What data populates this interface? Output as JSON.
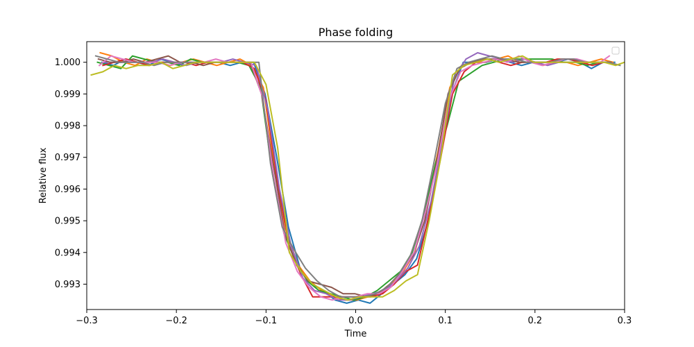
{
  "chart_data": {
    "type": "line",
    "title": "Phase folding",
    "xlabel": "Time",
    "ylabel": "Relative flux",
    "xlim": [
      -0.3,
      0.3
    ],
    "ylim": [
      0.9922,
      1.00065
    ],
    "xticks": [
      -0.3,
      -0.2,
      -0.1,
      0.0,
      0.1,
      0.2,
      0.3
    ],
    "xtick_labels": [
      "−0.3",
      "−0.2",
      "−0.1",
      "0.0",
      "0.1",
      "0.2",
      "0.3"
    ],
    "yticks": [
      0.993,
      0.994,
      0.995,
      0.996,
      0.997,
      0.998,
      0.999,
      1.0
    ],
    "ytick_labels": [
      "0.993",
      "0.994",
      "0.995",
      "0.996",
      "0.997",
      "0.998",
      "0.999",
      "1.000"
    ],
    "grid": false,
    "legend": {
      "placement": "upper right",
      "entries": []
    },
    "series": [
      {
        "color": "#1f77b4",
        "x": [
          -0.283,
          -0.27,
          -0.257,
          -0.244,
          -0.231,
          -0.218,
          -0.205,
          -0.192,
          -0.179,
          -0.166,
          -0.153,
          -0.14,
          -0.127,
          -0.114,
          -0.101,
          -0.088,
          -0.075,
          -0.062,
          -0.049,
          -0.036,
          -0.023,
          -0.01,
          0.003,
          0.016,
          0.029,
          0.042,
          0.055,
          0.068,
          0.081,
          0.094,
          0.107,
          0.12,
          0.133,
          0.146,
          0.159,
          0.172,
          0.185,
          0.198,
          0.211,
          0.224,
          0.237,
          0.25,
          0.263,
          0.276,
          0.289
        ],
        "values": [
          1.0,
          0.9999,
          1.0001,
          1.0,
          0.9999,
          1.0001,
          1.0,
          0.9999,
          1.0,
          1.0,
          1.0,
          0.9999,
          1.0,
          1.0,
          0.999,
          0.997,
          0.9948,
          0.9935,
          0.993,
          0.9928,
          0.9925,
          0.9924,
          0.9925,
          0.9924,
          0.9927,
          0.993,
          0.9933,
          0.9938,
          0.995,
          0.997,
          0.999,
          1.0,
          1.0,
          1.0,
          1.0001,
          1.0,
          0.9999,
          1.0,
          1.0,
          1.0,
          1.0001,
          1.0,
          0.9998,
          1.0,
          1.0
        ]
      },
      {
        "color": "#ff7f0e",
        "x": [
          -0.285,
          -0.272,
          -0.259,
          -0.246,
          -0.233,
          -0.22,
          -0.207,
          -0.194,
          -0.181,
          -0.168,
          -0.155,
          -0.142,
          -0.129,
          -0.116,
          -0.103,
          -0.09,
          -0.077,
          -0.064,
          -0.051,
          -0.038,
          -0.025,
          -0.012,
          0.001,
          0.014,
          0.027,
          0.04,
          0.053,
          0.066,
          0.079,
          0.092,
          0.105,
          0.118,
          0.131,
          0.144,
          0.157,
          0.17,
          0.183,
          0.196,
          0.209,
          0.222,
          0.235,
          0.248,
          0.261,
          0.274,
          0.287
        ],
        "values": [
          1.0003,
          1.0002,
          1.0,
          0.9999,
          1.0001,
          1.0,
          0.9999,
          1.0,
          1.0001,
          1.0,
          0.9999,
          1.0,
          1.0001,
          0.9999,
          0.9992,
          0.9966,
          0.9946,
          0.9936,
          0.9931,
          0.9928,
          0.9926,
          0.9925,
          0.9925,
          0.9926,
          0.9927,
          0.993,
          0.9934,
          0.994,
          0.9955,
          0.9972,
          0.9992,
          0.9999,
          1.0,
          1.0,
          1.0001,
          1.0002,
          1.0,
          1.0,
          0.9999,
          1.0,
          1.0,
          0.9999,
          1.0,
          1.0001,
          1.0
        ]
      },
      {
        "color": "#2ca02c",
        "x": [
          -0.288,
          -0.275,
          -0.262,
          -0.249,
          -0.236,
          -0.223,
          -0.21,
          -0.197,
          -0.184,
          -0.171,
          -0.158,
          -0.145,
          -0.132,
          -0.119,
          -0.106,
          -0.093,
          -0.08,
          -0.067,
          -0.054,
          -0.041,
          -0.028,
          -0.015,
          -0.002,
          0.011,
          0.024,
          0.037,
          0.05,
          0.063,
          0.076,
          0.089,
          0.102,
          0.115,
          0.141,
          0.154,
          0.167,
          0.18,
          0.193,
          0.206,
          0.219,
          0.232,
          0.245,
          0.258,
          0.271,
          0.284
        ],
        "values": [
          1.0,
          0.9999,
          0.9998,
          1.0002,
          1.0001,
          1.0,
          1.0,
          0.9999,
          1.0001,
          1.0,
          1.0,
          1.0,
          1.0,
          0.9999,
          0.9992,
          0.9965,
          0.9946,
          0.9937,
          0.9931,
          0.9928,
          0.9927,
          0.9926,
          0.9925,
          0.9926,
          0.9928,
          0.9931,
          0.9934,
          0.994,
          0.9952,
          0.9968,
          0.998,
          0.9994,
          0.9999,
          1.0,
          1.0001,
          1.0001,
          1.0001,
          1.0001,
          1.0001,
          1.0,
          1.0,
          0.9999,
          1.0,
          1.0
        ]
      },
      {
        "color": "#d62728",
        "x": [
          -0.282,
          -0.269,
          -0.256,
          -0.243,
          -0.23,
          -0.217,
          -0.204,
          -0.191,
          -0.178,
          -0.165,
          -0.152,
          -0.139,
          -0.126,
          -0.113,
          -0.1,
          -0.087,
          -0.074,
          -0.061,
          -0.048,
          -0.035,
          -0.022,
          -0.009,
          0.004,
          0.017,
          0.03,
          0.043,
          0.056,
          0.069,
          0.082,
          0.095,
          0.108,
          0.121,
          0.134,
          0.147,
          0.16,
          0.173,
          0.186,
          0.199,
          0.212,
          0.225,
          0.238,
          0.251,
          0.264,
          0.277
        ],
        "values": [
          0.9999,
          1.0,
          1.0001,
          1.0,
          0.9999,
          1.0,
          1.0,
          1.0,
          0.9999,
          1.0,
          1.0,
          1.0,
          1.0,
          0.9998,
          0.9988,
          0.9962,
          0.9942,
          0.9933,
          0.9926,
          0.9926,
          0.9926,
          0.9926,
          0.9926,
          0.9926,
          0.9927,
          0.993,
          0.9934,
          0.9936,
          0.9952,
          0.997,
          0.999,
          0.9997,
          1.0,
          1.0001,
          1.0,
          0.9999,
          1.0,
          1.0,
          1.0,
          1.0001,
          1.0001,
          1.0,
          0.9999,
          1.0
        ]
      },
      {
        "color": "#9467bd",
        "x": [
          -0.28,
          -0.267,
          -0.254,
          -0.241,
          -0.228,
          -0.215,
          -0.202,
          -0.189,
          -0.176,
          -0.163,
          -0.15,
          -0.137,
          -0.124,
          -0.111,
          -0.098,
          -0.085,
          -0.072,
          -0.059,
          -0.046,
          -0.033,
          -0.02,
          -0.007,
          0.006,
          0.019,
          0.032,
          0.045,
          0.058,
          0.071,
          0.084,
          0.097,
          0.11,
          0.123,
          0.136,
          0.149,
          0.162,
          0.175,
          0.188,
          0.201,
          0.214,
          0.227,
          0.24,
          0.253,
          0.266,
          0.279
        ],
        "values": [
          1.0,
          1.0,
          1.0,
          1.0,
          1.0,
          1.0001,
          1.0,
          0.9999,
          1.0,
          1.0,
          1.0,
          1.0001,
          1.0,
          0.9999,
          0.9985,
          0.996,
          0.9942,
          0.9932,
          0.9928,
          0.9927,
          0.9925,
          0.9925,
          0.9926,
          0.9927,
          0.9928,
          0.9931,
          0.9935,
          0.9942,
          0.9956,
          0.9975,
          0.9995,
          1.0001,
          1.0003,
          1.0002,
          1.0001,
          1.0,
          1.0001,
          1.0,
          0.9999,
          1.0,
          1.0,
          1.0,
          1.0,
          1.0
        ]
      },
      {
        "color": "#8c564b",
        "x": [
          -0.287,
          -0.274,
          -0.261,
          -0.248,
          -0.235,
          -0.222,
          -0.209,
          -0.196,
          -0.183,
          -0.17,
          -0.157,
          -0.144,
          -0.131,
          -0.118,
          -0.105,
          -0.092,
          -0.079,
          -0.066,
          -0.053,
          -0.04,
          -0.027,
          -0.014,
          -0.001,
          0.012,
          0.025,
          0.038,
          0.051,
          0.064,
          0.077,
          0.09,
          0.103,
          0.116,
          0.129,
          0.142,
          0.155,
          0.168,
          0.181,
          0.194,
          0.207,
          0.22,
          0.233,
          0.246,
          0.259,
          0.272,
          0.285
        ],
        "values": [
          1.0001,
          1.0,
          1.0,
          1.0001,
          1.0,
          1.0001,
          1.0002,
          1.0,
          1.0,
          0.9999,
          1.0,
          1.0,
          1.0,
          1.0,
          0.999,
          0.9968,
          0.9946,
          0.9936,
          0.9931,
          0.993,
          0.9929,
          0.9927,
          0.9927,
          0.9926,
          0.9927,
          0.993,
          0.9934,
          0.9939,
          0.995,
          0.9968,
          0.999,
          0.9998,
          1.0,
          1.0001,
          1.0001,
          1.0001,
          1.0,
          1.0,
          1.0,
          1.0,
          1.0001,
          1.0001,
          1.0,
          1.0,
          1.0
        ]
      },
      {
        "color": "#e377c2",
        "x": [
          -0.286,
          -0.273,
          -0.26,
          -0.247,
          -0.234,
          -0.221,
          -0.208,
          -0.195,
          -0.182,
          -0.169,
          -0.156,
          -0.143,
          -0.13,
          -0.117,
          -0.104,
          -0.091,
          -0.078,
          -0.065,
          -0.052,
          -0.039,
          -0.026,
          -0.013,
          0.0,
          0.013,
          0.026,
          0.039,
          0.052,
          0.065,
          0.078,
          0.091,
          0.104,
          0.117,
          0.13,
          0.143,
          0.156,
          0.169,
          0.182,
          0.195,
          0.208,
          0.221,
          0.234,
          0.247,
          0.26,
          0.273,
          0.283
        ],
        "values": [
          0.9999,
          1.0002,
          1.0001,
          1.0,
          1.0,
          1.0,
          0.9999,
          1.0,
          1.0,
          1.0,
          1.0001,
          1.0,
          1.0,
          1.0,
          0.9989,
          0.9963,
          0.9943,
          0.9934,
          0.9929,
          0.9926,
          0.9925,
          0.9926,
          0.9926,
          0.9927,
          0.9927,
          0.9929,
          0.9934,
          0.994,
          0.9953,
          0.9968,
          0.9988,
          0.9997,
          0.9999,
          1.0,
          1.0001,
          1.0,
          1.0002,
          1.0,
          0.9999,
          1.0,
          1.0001,
          1.0001,
          1.0,
          1.0,
          1.0002
        ]
      },
      {
        "color": "#7f7f7f",
        "x": [
          -0.29,
          -0.277,
          -0.264,
          -0.251,
          -0.238,
          -0.225,
          -0.212,
          -0.199,
          -0.186,
          -0.173,
          -0.16,
          -0.147,
          -0.134,
          -0.121,
          -0.108,
          -0.095,
          -0.082,
          -0.069,
          -0.056,
          -0.043,
          -0.03,
          -0.017,
          -0.004,
          0.009,
          0.022,
          0.035,
          0.048,
          0.061,
          0.074,
          0.087,
          0.1,
          0.113,
          0.126,
          0.139,
          0.152,
          0.165,
          0.178,
          0.191,
          0.204,
          0.217,
          0.23,
          0.243,
          0.256,
          0.269,
          0.282,
          0.295
        ],
        "values": [
          1.0002,
          1.0001,
          1.0,
          1.0,
          1.0,
          0.9999,
          1.0,
          1.0,
          1.0,
          1.0,
          1.0,
          1.0,
          1.0,
          1.0,
          1.0,
          0.9968,
          0.9948,
          0.9941,
          0.9935,
          0.9931,
          0.9928,
          0.9926,
          0.9926,
          0.9926,
          0.9927,
          0.9929,
          0.9933,
          0.9939,
          0.995,
          0.9968,
          0.9987,
          0.9998,
          1.0,
          1.0001,
          1.0002,
          1.0001,
          1.0001,
          1.0,
          1.0,
          1.0,
          1.0001,
          1.0001,
          1.0,
          1.0,
          1.0,
          0.9999
        ]
      },
      {
        "color": "#bcbd22",
        "x": [
          -0.295,
          -0.282,
          -0.269,
          -0.256,
          -0.243,
          -0.23,
          -0.217,
          -0.204,
          -0.191,
          -0.178,
          -0.165,
          -0.152,
          -0.139,
          -0.126,
          -0.113,
          -0.1,
          -0.087,
          -0.074,
          -0.061,
          -0.048,
          -0.035,
          -0.022,
          -0.009,
          0.004,
          0.017,
          0.03,
          0.043,
          0.056,
          0.069,
          0.082,
          0.095,
          0.108,
          0.121,
          0.134,
          0.147,
          0.16,
          0.173,
          0.186,
          0.199,
          0.212,
          0.225,
          0.238,
          0.251,
          0.264,
          0.277,
          0.29,
          0.3
        ],
        "values": [
          0.9996,
          0.9997,
          0.9999,
          0.9998,
          0.9999,
          0.9999,
          1.0,
          0.9998,
          0.9999,
          1.0,
          1.0,
          1.0,
          1.0,
          1.0,
          1.0,
          0.9993,
          0.9973,
          0.994,
          0.9934,
          0.993,
          0.9928,
          0.9926,
          0.9925,
          0.9926,
          0.9926,
          0.9926,
          0.9928,
          0.9931,
          0.9933,
          0.995,
          0.997,
          0.9996,
          0.9999,
          1.0,
          1.0001,
          1.0,
          1.0001,
          1.0002,
          1.0,
          1.0,
          1.0,
          1.0,
          1.0,
          1.0,
          1.0,
          0.9999,
          1.0
        ]
      }
    ]
  }
}
